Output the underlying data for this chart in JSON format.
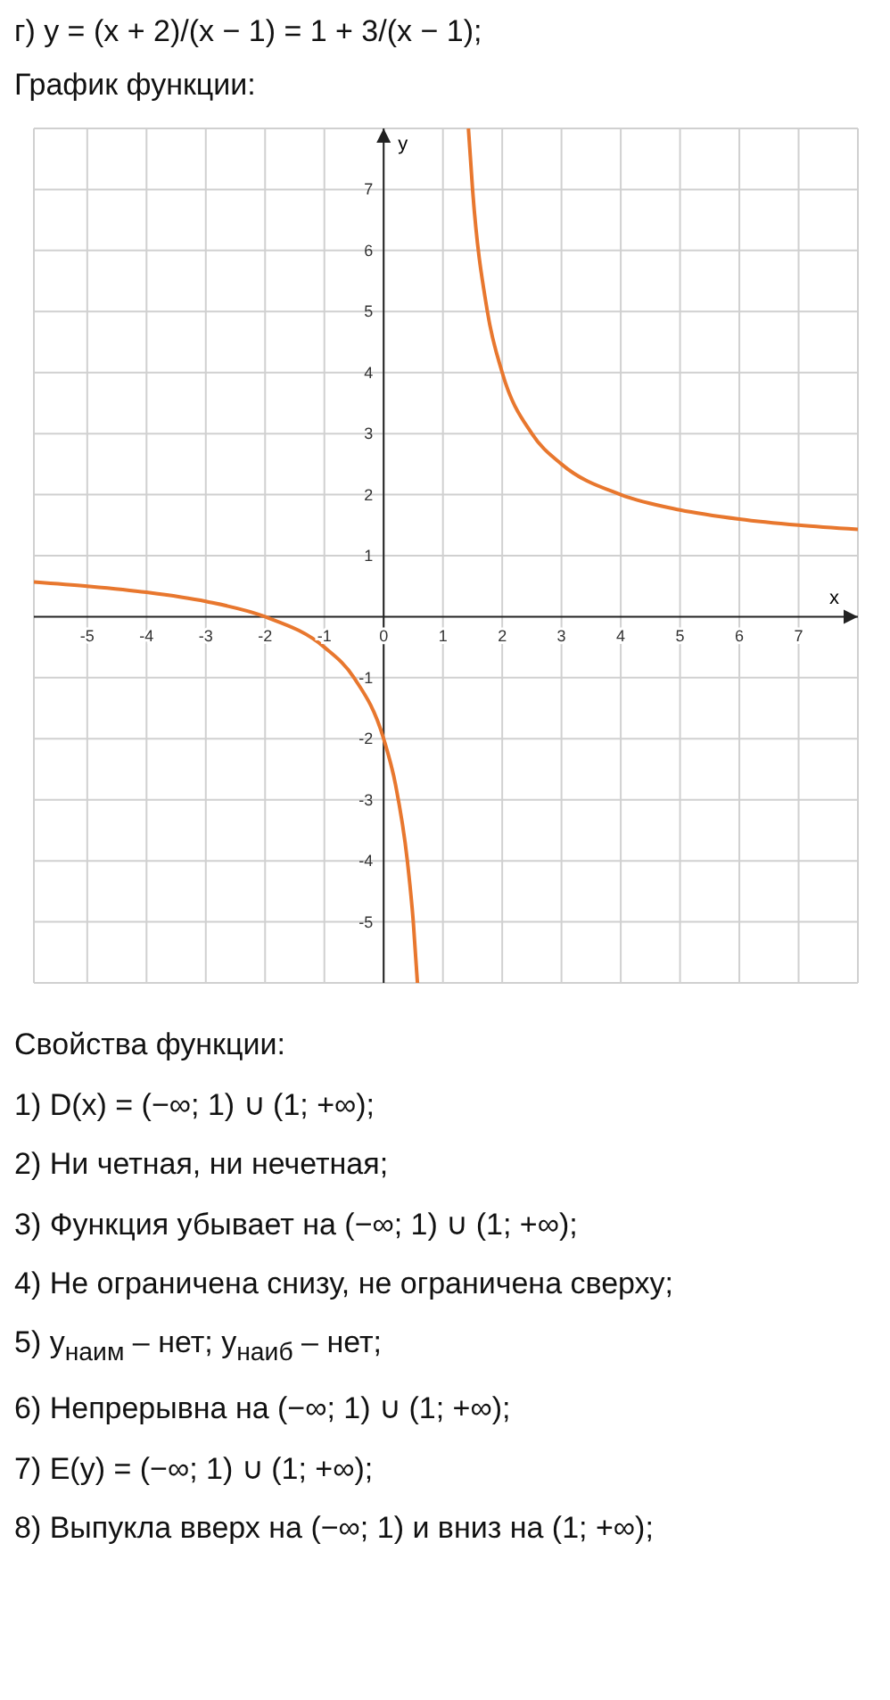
{
  "chart_data": {
    "type": "line",
    "title": "г) y = (x + 2)/(x − 1) = 1 + 3/(x − 1);",
    "subtitle": "График функции:",
    "xlabel": "x",
    "ylabel": "y",
    "annotations": [
      "Свойства функции:",
      "1) D(x) = (−∞; 1) ∪ (1; +∞);",
      "2) Ни четная, ни нечетная;",
      "3) Функция убывает на (−∞; 1) ∪ (1; +∞);",
      "4) Не ограничена снизу, не ограничена сверху;",
      "5) y$_{наим}$ – нет; y$_{наиб}$ – нет;",
      "6) Непрерывна на (−∞; 1) ∪ (1; +∞);",
      "7) E(y) = (−∞; 1) ∪ (1; +∞);",
      "8) Выпукла вверх на (−∞; 1) и вниз на (1; +∞);"
    ],
    "series": [
      {
        "color": "#e8772e",
        "x": [
          -5.9,
          -5,
          -4,
          -3,
          -2,
          -1,
          -0.5,
          0,
          0.2,
          0.4,
          0.5,
          0.57,
          1,
          1.43,
          1.5,
          1.75,
          2,
          2.5,
          3,
          4,
          5,
          6,
          7,
          8
        ],
        "values": [
          0.57,
          0.5,
          0.4,
          0.25,
          0,
          -0.5,
          -1,
          -2,
          -2.75,
          -4,
          -5,
          -6,
          null,
          8,
          7,
          5,
          4,
          3,
          2.5,
          2,
          1.75,
          1.6,
          1.5,
          1.43
        ]
      }
    ],
    "xlim": [
      -5.9,
      8
    ],
    "ylim": [
      -6,
      8
    ],
    "xticks": [
      -5,
      -4,
      -3,
      -2,
      -1,
      0,
      1,
      2,
      3,
      4,
      5,
      6,
      7
    ],
    "yticks": [
      -5,
      -4,
      -3,
      -2,
      -1,
      1,
      2,
      3,
      4,
      5,
      6,
      7
    ],
    "grid": true,
    "marker": "none",
    "line_style": "solid"
  }
}
